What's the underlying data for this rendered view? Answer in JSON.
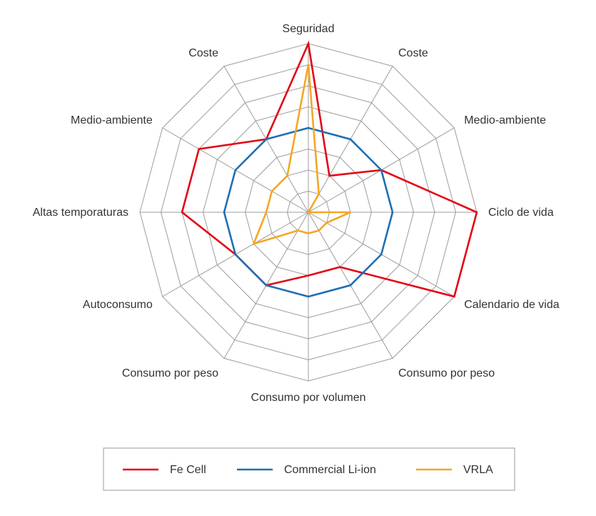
{
  "chart_data": {
    "type": "radar",
    "axes": [
      "Seguridad",
      "Coste",
      "Medio-ambiente",
      "Ciclo de vida",
      "Calendario de vida",
      "Consumo por peso",
      "Consumo por volumen",
      "Consumo por peso",
      "Autoconsumo",
      "Altas temporaturas",
      "Medio-ambiente",
      "Coste"
    ],
    "scale": {
      "min": 0,
      "max": 8,
      "rings": 8
    },
    "grid": true,
    "legend_position": "bottom",
    "series": [
      {
        "name": "Fe Cell",
        "color": "#e30613",
        "values": [
          8,
          2,
          4,
          8,
          8,
          3,
          3,
          4,
          4,
          6,
          6,
          4
        ]
      },
      {
        "name": "Commercial Li-ion",
        "color": "#1f6fb2",
        "values": [
          4,
          4,
          4,
          4,
          4,
          4,
          4,
          4,
          4,
          4,
          4,
          4
        ]
      },
      {
        "name": "VRLA",
        "color": "#f5a623",
        "values": [
          7,
          1,
          0,
          2,
          1,
          1,
          1,
          1,
          3,
          2,
          2,
          2
        ]
      }
    ]
  }
}
